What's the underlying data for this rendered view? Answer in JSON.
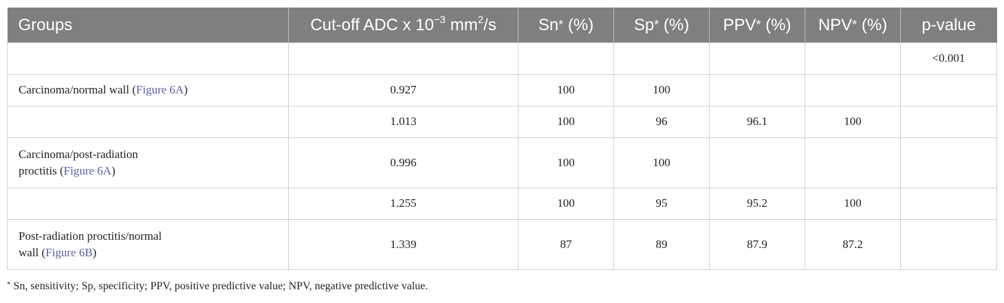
{
  "header": {
    "groups": "Groups",
    "cutoff": "Cut-off ADC x 10",
    "cutoff_exp": "−3",
    "cutoff_unit": " mm",
    "cutoff_unit_exp": "2",
    "cutoff_tail": "/s",
    "sn": "Sn",
    "sp": "Sp",
    "ppv": "PPV",
    "npv": "NPV",
    "star": "*",
    "pct": " (%)",
    "pvalue": "p-value"
  },
  "rows": [
    {
      "group_line1": "",
      "group_line2": "",
      "figure": "",
      "close": "",
      "cutoff": "",
      "sn": "",
      "sp": "",
      "ppv": "",
      "npv": "",
      "p": "<0.001"
    },
    {
      "group_line1": "Carcinoma/normal wall (",
      "group_line2": "",
      "figure": "Figure 6A",
      "close": ")",
      "cutoff": "0.927",
      "sn": "100",
      "sp": "100",
      "ppv": "",
      "npv": "",
      "p": ""
    },
    {
      "group_line1": "",
      "group_line2": "",
      "figure": "",
      "close": "",
      "cutoff": "1.013",
      "sn": "100",
      "sp": "96",
      "ppv": "96.1",
      "npv": "100",
      "p": ""
    },
    {
      "group_line1": "Carcinoma/post-radiation",
      "group_line2": "proctitis (",
      "figure": "Figure 6A",
      "close": ")",
      "cutoff": "0.996",
      "sn": "100",
      "sp": "100",
      "ppv": "",
      "npv": "",
      "p": ""
    },
    {
      "group_line1": "",
      "group_line2": "",
      "figure": "",
      "close": "",
      "cutoff": "1.255",
      "sn": "100",
      "sp": "95",
      "ppv": "95.2",
      "npv": "100",
      "p": ""
    },
    {
      "group_line1": "Post-radiation proctitis/normal",
      "group_line2": "wall (",
      "figure": "Figure 6B",
      "close": ")",
      "cutoff": "1.339",
      "sn": "87",
      "sp": "89",
      "ppv": "87.9",
      "npv": "87.2",
      "p": ""
    }
  ],
  "footnote": {
    "star": "*",
    "text": " Sn, sensitivity; Sp, specificity; PPV, positive predictive value; NPV, negative predictive value."
  }
}
